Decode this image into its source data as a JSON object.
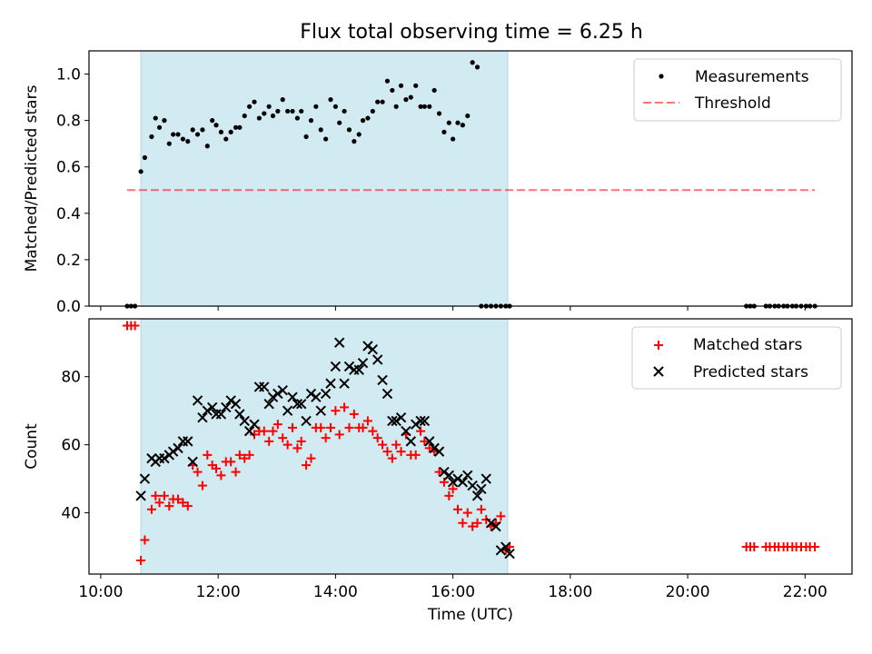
{
  "title": "Flux total observing time = 6.25 h",
  "colors": {
    "observing_window": "#add8e6",
    "measurements": "#000000",
    "threshold": "#ff0000",
    "matched": "#ff0000",
    "predicted": "#000000"
  },
  "chart_data": [
    {
      "type": "scatter",
      "ylabel": "Matched/Predicted stars",
      "ylim": [
        0,
        1.1
      ],
      "yticks": [
        "0.0",
        "0.2",
        "0.4",
        "0.6",
        "0.8",
        "1.0"
      ],
      "legend_position": "top-right",
      "observing_window": [
        "10:41",
        "16:56"
      ],
      "series": [
        {
          "name": "Measurements",
          "x": [
            "10:27",
            "10:31",
            "10:35",
            "10:41",
            "10:45",
            "10:52",
            "10:56",
            "11:00",
            "11:05",
            "11:10",
            "11:14",
            "11:19",
            "11:24",
            "11:29",
            "11:34",
            "11:39",
            "11:44",
            "11:49",
            "11:54",
            "11:58",
            "12:03",
            "12:08",
            "12:13",
            "12:18",
            "12:22",
            "12:27",
            "12:32",
            "12:37",
            "12:42",
            "12:47",
            "12:52",
            "12:56",
            "13:01",
            "13:06",
            "13:11",
            "13:16",
            "13:21",
            "13:25",
            "13:30",
            "13:35",
            "13:40",
            "13:45",
            "13:50",
            "13:55",
            "14:00",
            "14:04",
            "14:09",
            "14:14",
            "14:19",
            "14:24",
            "14:28",
            "14:33",
            "14:38",
            "14:43",
            "14:48",
            "14:53",
            "14:58",
            "15:02",
            "15:07",
            "15:12",
            "15:17",
            "15:22",
            "15:27",
            "15:31",
            "15:36",
            "15:41",
            "15:46",
            "15:51",
            "15:56",
            "16:00",
            "16:05",
            "16:10",
            "16:15",
            "16:20",
            "16:25",
            "16:29",
            "16:34",
            "16:39",
            "16:44",
            "16:49",
            "16:54",
            "16:58",
            "21:00",
            "21:04",
            "21:08",
            "21:20",
            "21:24",
            "21:29",
            "21:33",
            "21:38",
            "21:42",
            "21:47",
            "21:51",
            "21:56",
            "22:01",
            "22:05",
            "22:10"
          ],
          "y": [
            0,
            0,
            0,
            0.58,
            0.64,
            0.73,
            0.81,
            0.77,
            0.8,
            0.7,
            0.74,
            0.74,
            0.72,
            0.71,
            0.76,
            0.74,
            0.76,
            0.69,
            0.8,
            0.78,
            0.75,
            0.72,
            0.75,
            0.77,
            0.77,
            0.82,
            0.86,
            0.88,
            0.81,
            0.83,
            0.86,
            0.82,
            0.84,
            0.89,
            0.84,
            0.84,
            0.81,
            0.84,
            0.73,
            0.8,
            0.86,
            0.76,
            0.72,
            0.89,
            0.86,
            0.79,
            0.84,
            0.76,
            0.71,
            0.74,
            0.8,
            0.81,
            0.84,
            0.88,
            0.88,
            0.97,
            0.93,
            0.86,
            0.95,
            0.89,
            0.9,
            0.95,
            0.86,
            0.86,
            0.86,
            0.93,
            0.83,
            0.75,
            0.79,
            0.72,
            0.79,
            0.78,
            0.82,
            1.05,
            1.03,
            0,
            0,
            0,
            0,
            0,
            0,
            0,
            0,
            0,
            0,
            0,
            0,
            0,
            0,
            0,
            0,
            0,
            0,
            0,
            0,
            0,
            0
          ]
        },
        {
          "name": "Threshold",
          "x": [
            "10:27",
            "22:10"
          ],
          "y": [
            0.5,
            0.5
          ]
        }
      ]
    },
    {
      "type": "scatter",
      "xlabel": "Time (UTC)",
      "ylabel": "Count",
      "ylim": [
        22,
        97
      ],
      "yticks": [
        "40",
        "60",
        "80"
      ],
      "xticks": [
        "10:00",
        "12:00",
        "14:00",
        "16:00",
        "18:00",
        "20:00",
        "22:00"
      ],
      "legend_position": "top-right",
      "observing_window": [
        "10:41",
        "16:56"
      ],
      "series": [
        {
          "name": "Matched stars",
          "x": [
            "10:27",
            "10:31",
            "10:35",
            "10:41",
            "10:45",
            "10:52",
            "10:56",
            "11:00",
            "11:05",
            "11:10",
            "11:14",
            "11:19",
            "11:24",
            "11:29",
            "11:34",
            "11:39",
            "11:44",
            "11:49",
            "11:54",
            "11:58",
            "12:03",
            "12:08",
            "12:13",
            "12:18",
            "12:22",
            "12:27",
            "12:32",
            "12:37",
            "12:42",
            "12:47",
            "12:52",
            "12:56",
            "13:01",
            "13:06",
            "13:11",
            "13:16",
            "13:21",
            "13:25",
            "13:30",
            "13:35",
            "13:40",
            "13:45",
            "13:50",
            "13:55",
            "14:00",
            "14:04",
            "14:09",
            "14:14",
            "14:19",
            "14:24",
            "14:28",
            "14:33",
            "14:38",
            "14:43",
            "14:48",
            "14:53",
            "14:58",
            "15:02",
            "15:07",
            "15:12",
            "15:17",
            "15:22",
            "15:27",
            "15:31",
            "15:36",
            "15:41",
            "15:46",
            "15:51",
            "15:56",
            "16:00",
            "16:05",
            "16:10",
            "16:15",
            "16:20",
            "16:25",
            "16:29",
            "16:34",
            "16:39",
            "16:44",
            "16:49",
            "16:54",
            "16:58",
            "21:00",
            "21:04",
            "21:08",
            "21:20",
            "21:24",
            "21:29",
            "21:33",
            "21:38",
            "21:42",
            "21:47",
            "21:51",
            "21:56",
            "22:01",
            "22:05",
            "22:10"
          ],
          "y": [
            95,
            95,
            95,
            26,
            32,
            41,
            45,
            43,
            45,
            42,
            44,
            44,
            43,
            42,
            54,
            52,
            48,
            57,
            54,
            53,
            51,
            55,
            55,
            52,
            57,
            56,
            57,
            63,
            64,
            64,
            61,
            64,
            66,
            62,
            60,
            65,
            59,
            61,
            54,
            56,
            65,
            65,
            62,
            65,
            70,
            63,
            71,
            65,
            69,
            65,
            65,
            67,
            64,
            62,
            60,
            58,
            56,
            60,
            58,
            63,
            57,
            57,
            64,
            61,
            59,
            58,
            52,
            49,
            45,
            47,
            41,
            37,
            40,
            36,
            37,
            41,
            38,
            36,
            37,
            39,
            29,
            30,
            30,
            30,
            30,
            30,
            30,
            30,
            30,
            30,
            30,
            30,
            30,
            30,
            30,
            30,
            30
          ]
        },
        {
          "name": "Predicted stars",
          "x": [
            "10:41",
            "10:45",
            "10:52",
            "10:56",
            "11:00",
            "11:05",
            "11:10",
            "11:14",
            "11:19",
            "11:24",
            "11:29",
            "11:34",
            "11:39",
            "11:44",
            "11:49",
            "11:54",
            "11:58",
            "12:03",
            "12:08",
            "12:13",
            "12:18",
            "12:22",
            "12:27",
            "12:32",
            "12:37",
            "12:42",
            "12:47",
            "12:52",
            "12:56",
            "13:01",
            "13:06",
            "13:11",
            "13:16",
            "13:21",
            "13:25",
            "13:30",
            "13:35",
            "13:40",
            "13:45",
            "13:50",
            "13:55",
            "14:00",
            "14:04",
            "14:09",
            "14:14",
            "14:19",
            "14:24",
            "14:28",
            "14:33",
            "14:38",
            "14:43",
            "14:48",
            "14:53",
            "14:58",
            "15:02",
            "15:07",
            "15:12",
            "15:17",
            "15:22",
            "15:27",
            "15:31",
            "15:36",
            "15:41",
            "15:46",
            "15:51",
            "15:56",
            "16:00",
            "16:05",
            "16:10",
            "16:15",
            "16:20",
            "16:25",
            "16:29",
            "16:34",
            "16:39",
            "16:44",
            "16:49",
            "16:54",
            "16:58"
          ],
          "y": [
            45,
            50,
            56,
            55,
            56,
            56,
            57,
            58,
            59,
            61,
            61,
            55,
            73,
            68,
            70,
            71,
            69,
            69,
            71,
            73,
            72,
            69,
            67,
            64,
            66,
            77,
            77,
            72,
            74,
            75,
            76,
            70,
            74,
            72,
            72,
            67,
            75,
            74,
            70,
            75,
            78,
            83,
            90,
            78,
            83,
            82,
            82,
            84,
            89,
            88,
            85,
            79,
            75,
            67,
            67,
            68,
            64,
            61,
            66,
            67,
            67,
            61,
            59,
            58,
            52,
            51,
            49,
            50,
            49,
            51,
            48,
            45,
            47,
            50,
            37,
            36,
            29,
            30,
            28
          ]
        }
      ]
    }
  ]
}
